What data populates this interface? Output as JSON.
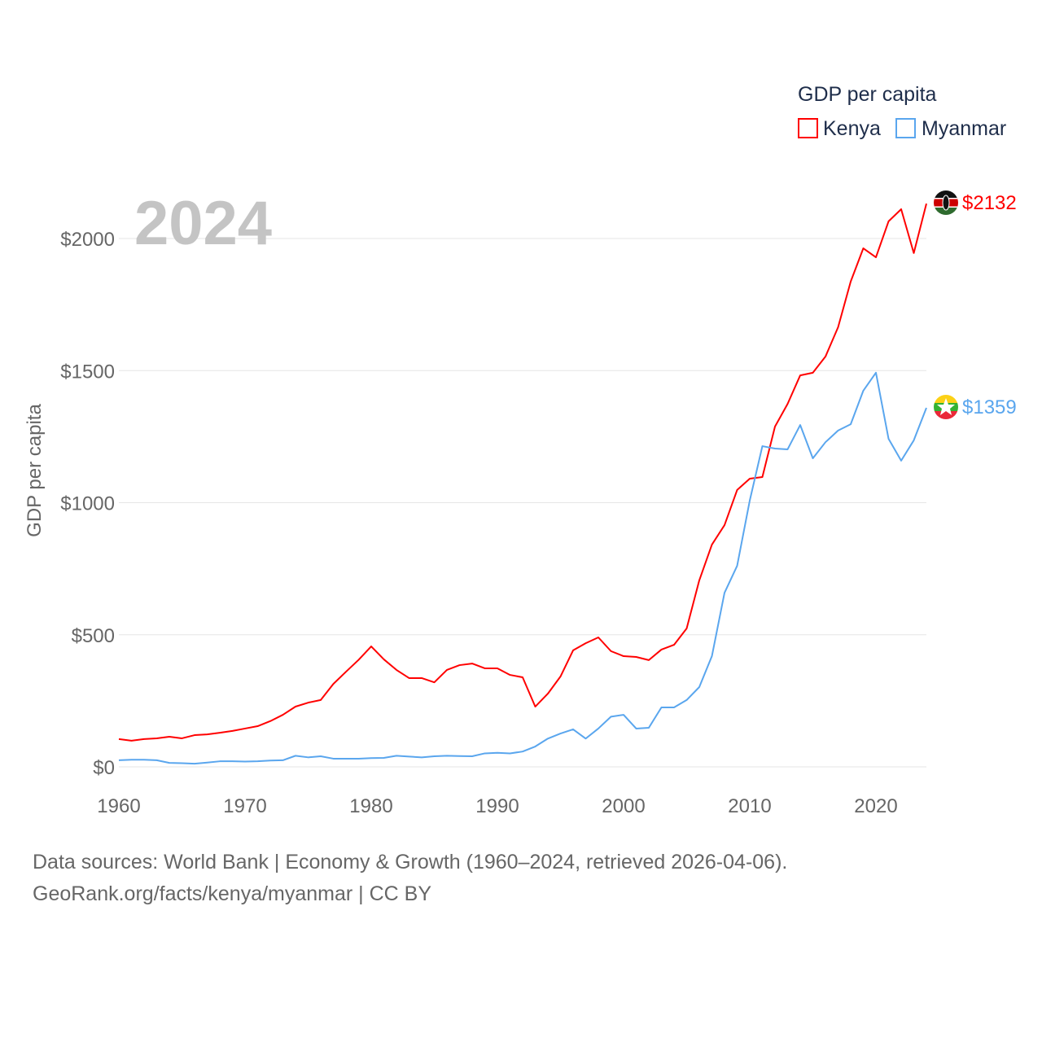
{
  "chart_data": {
    "type": "line",
    "title": "GDP per capita",
    "year_label": "2024",
    "ylabel": "GDP per capita",
    "xlabel": "",
    "xlim": [
      1960,
      2024
    ],
    "ylim": [
      0,
      2000
    ],
    "x_ticks": [
      "1960",
      "1970",
      "1980",
      "1990",
      "2000",
      "2010",
      "2020"
    ],
    "y_ticks": [
      "$0",
      "$500",
      "$1000",
      "$1500",
      "$2000"
    ],
    "y_tick_values": [
      0,
      500,
      1000,
      1500,
      2000
    ],
    "x_tick_values": [
      1960,
      1970,
      1980,
      1990,
      2000,
      2010,
      2020
    ],
    "grid": true,
    "legend_title": "GDP per capita",
    "legend_position": "top-right",
    "x": [
      1960,
      1961,
      1962,
      1963,
      1964,
      1965,
      1966,
      1967,
      1968,
      1969,
      1970,
      1971,
      1972,
      1973,
      1974,
      1975,
      1976,
      1977,
      1978,
      1979,
      1980,
      1981,
      1982,
      1983,
      1984,
      1985,
      1986,
      1987,
      1988,
      1989,
      1990,
      1991,
      1992,
      1993,
      1994,
      1995,
      1996,
      1997,
      1998,
      1999,
      2000,
      2001,
      2002,
      2003,
      2004,
      2005,
      2006,
      2007,
      2008,
      2009,
      2010,
      2011,
      2012,
      2013,
      2014,
      2015,
      2016,
      2017,
      2018,
      2019,
      2020,
      2021,
      2022,
      2023,
      2024
    ],
    "series": [
      {
        "name": "Kenya",
        "color": "#ff0000",
        "end_label": "$2132",
        "values": [
          105,
          99,
          105,
          108,
          114,
          108,
          120,
          123,
          129,
          136,
          145,
          154,
          173,
          197,
          228,
          243,
          253,
          314,
          360,
          405,
          456,
          407,
          367,
          336,
          336,
          320,
          367,
          385,
          391,
          373,
          373,
          348,
          339,
          228,
          277,
          342,
          441,
          468,
          490,
          438,
          419,
          416,
          404,
          444,
          462,
          524,
          706,
          841,
          915,
          1048,
          1091,
          1097,
          1288,
          1374,
          1482,
          1492,
          1553,
          1664,
          1837,
          1963,
          1929,
          2065,
          2111,
          1945,
          2132
        ]
      },
      {
        "name": "Myanmar",
        "color": "#5aa6ee",
        "end_label": "$1359",
        "values": [
          25,
          27,
          27,
          25,
          15,
          14,
          12,
          16,
          21,
          21,
          20,
          21,
          24,
          25,
          42,
          36,
          40,
          31,
          31,
          31,
          33,
          34,
          42,
          39,
          36,
          40,
          42,
          41,
          40,
          51,
          53,
          51,
          58,
          77,
          107,
          126,
          142,
          107,
          145,
          190,
          197,
          145,
          148,
          225,
          225,
          253,
          302,
          419,
          659,
          761,
          1008,
          1214,
          1205,
          1202,
          1294,
          1168,
          1229,
          1273,
          1297,
          1424,
          1492,
          1242,
          1159,
          1236,
          1359
        ]
      }
    ]
  },
  "footer": {
    "line1": "Data sources: World Bank | Economy & Growth (1960–2024, retrieved 2026-04-06).",
    "line2": "GeoRank.org/facts/kenya/myanmar | CC BY"
  }
}
